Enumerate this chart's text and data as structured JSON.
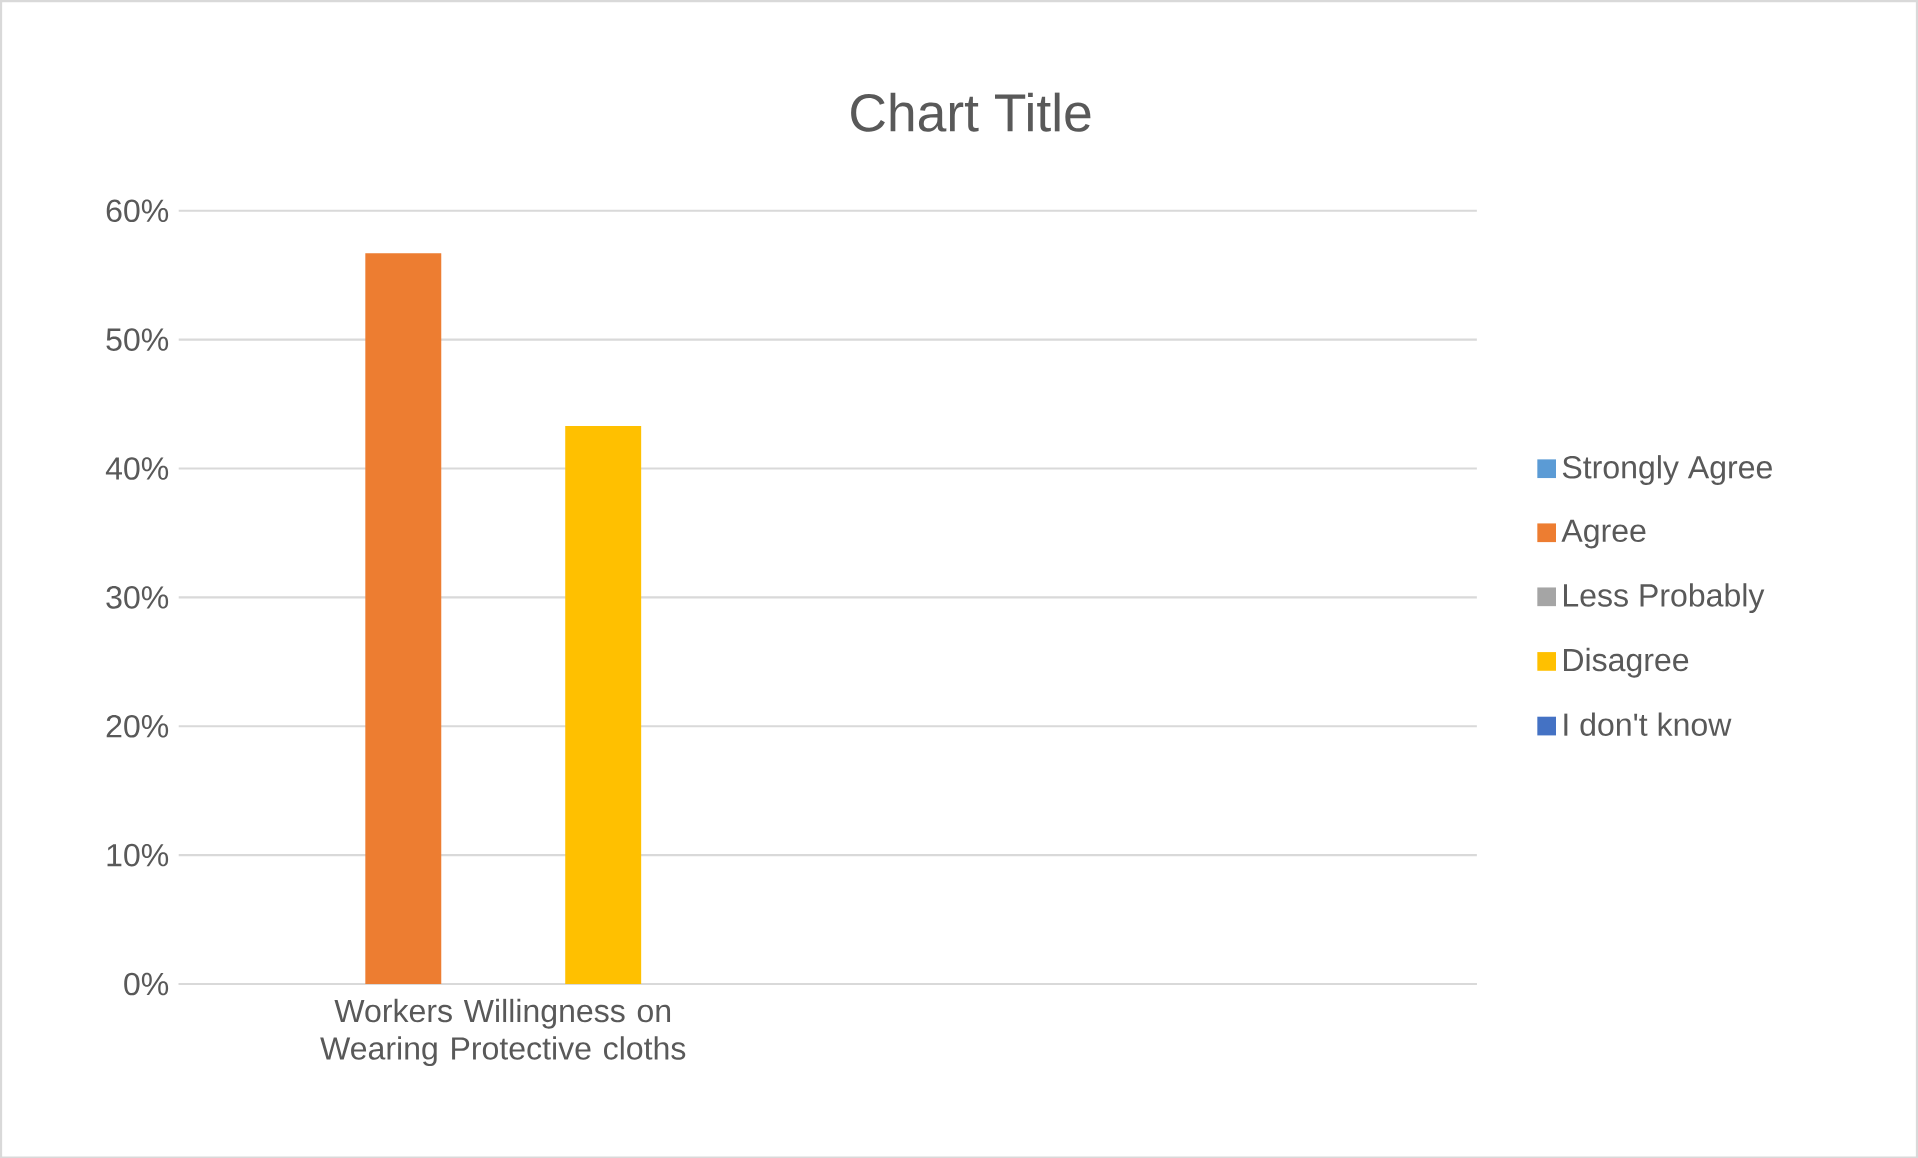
{
  "chart_data": {
    "type": "bar",
    "title": "Chart Title",
    "categories": [
      "Workers Willingness on Wearing Protective cloths",
      null
    ],
    "series": [
      {
        "name": "Strongly Agree",
        "color": "#5b9bd5",
        "values": [
          0,
          null
        ]
      },
      {
        "name": "Agree",
        "color": "#ed7d31",
        "values": [
          56.7,
          null
        ]
      },
      {
        "name": "Less Probably",
        "color": "#a5a5a5",
        "values": [
          0,
          null
        ]
      },
      {
        "name": "Disagree",
        "color": "#ffc000",
        "values": [
          43.3,
          null
        ]
      },
      {
        "name": "I don't know",
        "color": "#4472c4",
        "values": [
          0,
          null
        ]
      }
    ],
    "ylim": [
      0,
      60
    ],
    "yticks": [
      {
        "value": 0,
        "label": "0%"
      },
      {
        "value": 10,
        "label": "10%"
      },
      {
        "value": 20,
        "label": "20%"
      },
      {
        "value": 30,
        "label": "30%"
      },
      {
        "value": 40,
        "label": "40%"
      },
      {
        "value": 50,
        "label": "50%"
      },
      {
        "value": 60,
        "label": "60%"
      }
    ],
    "grid": "y",
    "legend": "right"
  }
}
